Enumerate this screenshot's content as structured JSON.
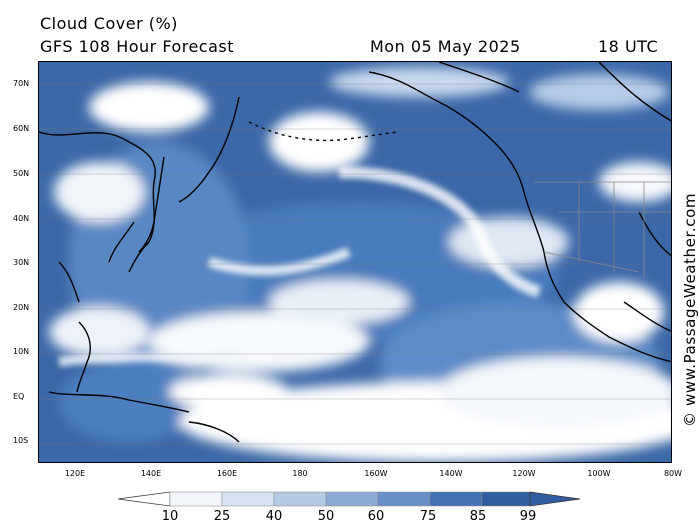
{
  "header": {
    "title": "Cloud Cover (%)",
    "subtitle": "GFS 108 Hour Forecast",
    "date": "Mon 05 May 2025",
    "time": "18 UTC"
  },
  "credit": "© www.PassageWeather.com",
  "lat_labels": [
    "70N",
    "60N",
    "50N",
    "40N",
    "30N",
    "20N",
    "10N",
    "EQ",
    "10S"
  ],
  "lon_labels": [
    "120E",
    "140E",
    "160E",
    "180",
    "160W",
    "140W",
    "120W",
    "100W",
    "80W"
  ],
  "legend": {
    "ticks": [
      "10",
      "25",
      "40",
      "50",
      "60",
      "75",
      "85",
      "99"
    ],
    "colors": [
      "#ffffff",
      "#f1f5fa",
      "#d5e2f1",
      "#b4c9e4",
      "#8cabd4",
      "#6690c6",
      "#4373b3",
      "#2f5da0"
    ]
  },
  "colors": {
    "cloud_dark": "#3563a3",
    "cloud_mid": "#4f7fbf",
    "cloud_light": "#9cb8de",
    "coast": "#000000"
  }
}
